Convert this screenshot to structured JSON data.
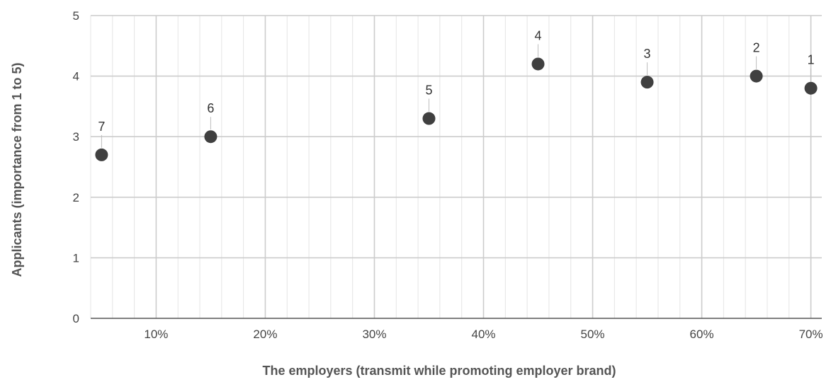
{
  "chart_data": {
    "type": "scatter",
    "xlabel": "The employers (transmit while promoting employer brand)",
    "ylabel": "Applicants (importance from 1 to 5)",
    "xlim": [
      4,
      71
    ],
    "ylim": [
      0,
      5
    ],
    "x_ticks": [
      10,
      20,
      30,
      40,
      50,
      60,
      70
    ],
    "x_tick_labels": [
      "10%",
      "20%",
      "30%",
      "40%",
      "50%",
      "60%",
      "70%"
    ],
    "y_ticks": [
      0,
      1,
      2,
      3,
      4,
      5
    ],
    "y_tick_labels": [
      "0",
      "1",
      "2",
      "3",
      "4",
      "5"
    ],
    "x_minor_step": 2,
    "grid": true,
    "point_color": "#404040",
    "points": [
      {
        "label": "7",
        "x": 5,
        "y": 2.7
      },
      {
        "label": "6",
        "x": 15,
        "y": 3.0
      },
      {
        "label": "5",
        "x": 35,
        "y": 3.3
      },
      {
        "label": "4",
        "x": 45,
        "y": 4.2
      },
      {
        "label": "3",
        "x": 55,
        "y": 3.9
      },
      {
        "label": "2",
        "x": 65,
        "y": 4.0
      },
      {
        "label": "1",
        "x": 70,
        "y": 3.8
      }
    ]
  }
}
